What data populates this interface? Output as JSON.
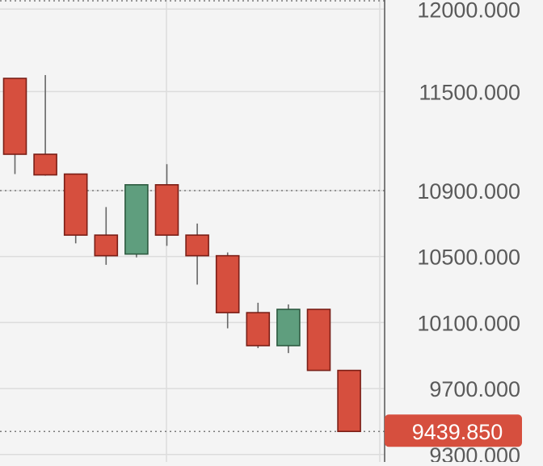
{
  "chart_data": {
    "type": "candlestick",
    "title": "",
    "xlabel": "",
    "ylabel": "",
    "ylim": [
      9255,
      12055
    ],
    "y_ticks": [
      {
        "value": 12000,
        "label": "12000.000"
      },
      {
        "value": 11500,
        "label": "11500.000"
      },
      {
        "value": 10900,
        "label": "10900.000"
      },
      {
        "value": 10500,
        "label": "10500.000"
      },
      {
        "value": 10100,
        "label": "10100.000"
      },
      {
        "value": 9700,
        "label": "9700.000"
      },
      {
        "value": 9300,
        "label": "9300.000"
      }
    ],
    "dotted_levels": [
      12050,
      10900,
      9439.85
    ],
    "current_price": {
      "value": 9439.85,
      "label": "9439.850"
    },
    "candles": [
      {
        "open": 11580,
        "high": 11580,
        "low": 11000,
        "close": 11120
      },
      {
        "open": 11120,
        "high": 11600,
        "low": 10990,
        "close": 10995
      },
      {
        "open": 11000,
        "high": 11000,
        "low": 10580,
        "close": 10630
      },
      {
        "open": 10630,
        "high": 10800,
        "low": 10450,
        "close": 10505
      },
      {
        "open": 10515,
        "high": 10935,
        "low": 10495,
        "close": 10935
      },
      {
        "open": 10935,
        "high": 11060,
        "low": 10565,
        "close": 10630
      },
      {
        "open": 10630,
        "high": 10700,
        "low": 10330,
        "close": 10505
      },
      {
        "open": 10505,
        "high": 10525,
        "low": 10065,
        "close": 10160
      },
      {
        "open": 10160,
        "high": 10220,
        "low": 9945,
        "close": 9960
      },
      {
        "open": 9960,
        "high": 10210,
        "low": 9915,
        "close": 10180
      },
      {
        "open": 10180,
        "high": 10180,
        "low": 9810,
        "close": 9810
      },
      {
        "open": 9810,
        "high": 9810,
        "low": 9440,
        "close": 9440
      }
    ],
    "colors": {
      "background": "#f4f4f4",
      "grid": "#dcdcdc",
      "axis": "#555555",
      "up_fill": "#5f9e7e",
      "up_stroke": "#2d5a40",
      "down_fill": "#d64f3e",
      "down_stroke": "#7a1e16",
      "wick": "#666666",
      "tick_text": "#5a5a5a",
      "price_label_bg": "#d64f3e",
      "price_label_text": "#ffffff",
      "dotted": "#7a7a7a"
    }
  }
}
